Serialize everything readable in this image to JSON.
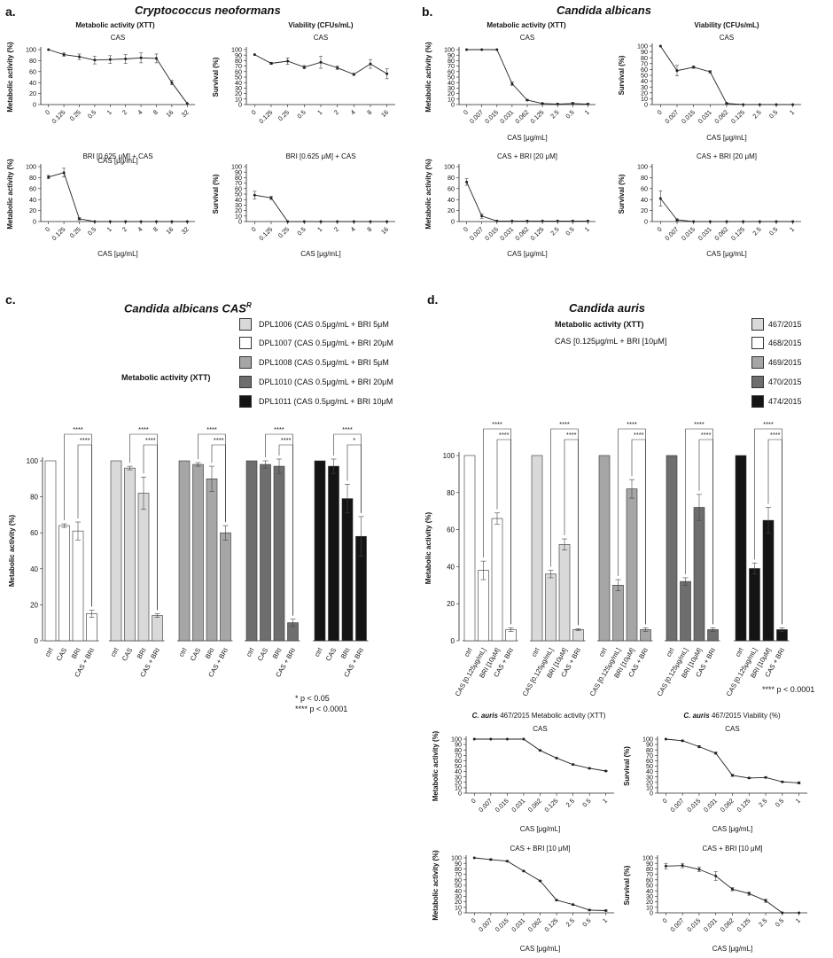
{
  "panels": {
    "a": {
      "letter": "a.",
      "species": "Cryptococcus neoformans"
    },
    "b": {
      "letter": "b.",
      "species": "Candida albicans"
    },
    "c": {
      "letter": "c.",
      "species": "Candida albicans CAS",
      "species_sup": "R",
      "header": "Metabolic activity (XTT)",
      "legend": [
        {
          "label": "DPL1006 (CAS 0.5μg/mL + BRI 5μM",
          "color": "#d9d9d9"
        },
        {
          "label": "DPL1007 (CAS 0.5μg/mL + BRI 20μM",
          "color": "#ffffff"
        },
        {
          "label": "DPL1008 (CAS 0.5μg/mL + BRI 5μM",
          "color": "#a6a6a6"
        },
        {
          "label": "DPL1010 (CAS 0.5μg/mL + BRI 20μM",
          "color": "#6e6e6e"
        },
        {
          "label": "DPL1011 (CAS 0.5μg/mL + BRI 10μM",
          "color": "#141414"
        }
      ],
      "note1": "* p < 0.05",
      "note2": "**** p < 0.0001"
    },
    "d": {
      "letter": "d.",
      "species": "Candida auris",
      "header": "Metabolic activity (XTT)",
      "subheader": "CAS [0.125μg/mL + BRI [10μM]",
      "legend": [
        {
          "label": "467/2015",
          "color": "#d9d9d9"
        },
        {
          "label": "468/2015",
          "color": "#ffffff"
        },
        {
          "label": "469/2015",
          "color": "#a6a6a6"
        },
        {
          "label": "470/2015",
          "color": "#6e6e6e"
        },
        {
          "label": "474/2015",
          "color": "#141414"
        }
      ],
      "note": "**** p < 0.0001"
    }
  },
  "chart_data": [
    {
      "id": "a1",
      "type": "line",
      "heading": "Metabolic activity (XTT)",
      "title": "CAS",
      "xlabel": "CAS [μg/mL]",
      "ylabel": "Metabolic activity (%)",
      "ylim": [
        0,
        100
      ],
      "yticks": [
        0,
        20,
        40,
        60,
        80,
        100
      ],
      "x": [
        "0",
        "0.125",
        "0.25",
        "0.5",
        "1",
        "2",
        "4",
        "8",
        "16",
        "32"
      ],
      "y": [
        100,
        91,
        87,
        81,
        82,
        83,
        85,
        84,
        40,
        2
      ],
      "err": [
        0,
        3,
        5,
        7,
        7,
        8,
        9,
        8,
        4,
        0
      ]
    },
    {
      "id": "a2",
      "type": "line",
      "heading": "Viability (CFUs/mL)",
      "title": "CAS",
      "xlabel": "",
      "ylabel": "Survival (%)",
      "ylim": [
        0,
        100
      ],
      "yticks": [
        0,
        10,
        20,
        30,
        40,
        50,
        60,
        70,
        80,
        90,
        100
      ],
      "x": [
        "0",
        "0.125",
        "0.25",
        "0.5",
        "1",
        "2",
        "4",
        "8",
        "16"
      ],
      "y": [
        91,
        75,
        79,
        68,
        77,
        67,
        55,
        74,
        56
      ],
      "err": [
        0,
        2,
        6,
        3,
        11,
        3,
        2,
        8,
        9
      ]
    },
    {
      "id": "a3",
      "type": "line",
      "heading": "",
      "title": "BRI [0.625 μM] + CAS",
      "xlabel": "CAS [μg/mL]",
      "ylabel": "Metabolic activity (%)",
      "ylim": [
        0,
        100
      ],
      "yticks": [
        0,
        20,
        40,
        60,
        80,
        100
      ],
      "x": [
        "0",
        "0.125",
        "0.25",
        "0.5",
        "1",
        "2",
        "4",
        "8",
        "16",
        "32"
      ],
      "y": [
        81,
        89,
        5,
        0,
        0,
        0,
        0,
        0,
        0,
        0
      ],
      "err": [
        3,
        8,
        2,
        0,
        0,
        0,
        0,
        0,
        0,
        0
      ]
    },
    {
      "id": "a4",
      "type": "line",
      "heading": "",
      "title": "BRI [0.625 μM] + CAS",
      "xlabel": "CAS [μg/mL]",
      "ylabel": "Survival (%)",
      "ylim": [
        0,
        100
      ],
      "yticks": [
        0,
        10,
        20,
        30,
        40,
        50,
        60,
        70,
        80,
        90,
        100
      ],
      "x": [
        "0",
        "0.125",
        "0.25",
        "0.5",
        "1",
        "2",
        "4",
        "8",
        "16"
      ],
      "y": [
        48,
        43,
        0,
        0,
        0,
        0,
        0,
        0,
        0
      ],
      "err": [
        7,
        3,
        0,
        0,
        0,
        0,
        0,
        0,
        0
      ]
    },
    {
      "id": "b1",
      "type": "line",
      "heading": "Metabolic activity (XTT)",
      "title": "CAS",
      "xlabel": "CAS [μg/mL]",
      "ylabel": "Metabolic activity (%)",
      "ylim": [
        0,
        100
      ],
      "yticks": [
        0,
        10,
        20,
        30,
        40,
        50,
        60,
        70,
        80,
        90,
        100
      ],
      "x": [
        "0",
        "0.007",
        "0.015",
        "0.031",
        "0.062",
        "0.125",
        "2.5",
        "0.5",
        "1"
      ],
      "y": [
        100,
        100,
        100,
        38,
        8,
        2,
        1,
        2,
        1
      ],
      "err": [
        0,
        0,
        0,
        3,
        1,
        1,
        1,
        2,
        1
      ]
    },
    {
      "id": "b2",
      "type": "line",
      "heading": "Viability (CFUs/mL)",
      "title": "CAS",
      "xlabel": "CAS [μg/mL]",
      "ylabel": "Survival (%)",
      "ylim": [
        0,
        100
      ],
      "yticks": [
        0,
        10,
        20,
        30,
        40,
        50,
        60,
        70,
        80,
        90,
        100
      ],
      "x": [
        "0",
        "0.007",
        "0.015",
        "0.031",
        "0.062",
        "0.125",
        "2.5",
        "0.5",
        "1"
      ],
      "y": [
        100,
        58,
        64,
        56,
        2,
        0,
        0,
        0,
        0
      ],
      "err": [
        0,
        9,
        2,
        2,
        1,
        0,
        0,
        0,
        0
      ]
    },
    {
      "id": "b3",
      "type": "line",
      "heading": "",
      "title": "CAS + BRI [20 μM]",
      "xlabel": "CAS [μg/mL]",
      "ylabel": "Metabolic activity (%)",
      "ylim": [
        0,
        100
      ],
      "yticks": [
        0,
        20,
        40,
        60,
        80,
        100
      ],
      "x": [
        "0",
        "0.007",
        "0.015",
        "0.031",
        "0.062",
        "0.125",
        "2.5",
        "0.5",
        "1"
      ],
      "y": [
        72,
        10,
        1,
        1,
        1,
        1,
        1,
        1,
        1
      ],
      "err": [
        6,
        4,
        0,
        0,
        0,
        0,
        0,
        0,
        0
      ]
    },
    {
      "id": "b4",
      "type": "line",
      "heading": "",
      "title": "CAS + BRI [20 μM]",
      "xlabel": "CAS [μg/mL]",
      "ylabel": "Survival (%)",
      "ylim": [
        0,
        100
      ],
      "yticks": [
        0,
        20,
        40,
        60,
        80,
        100
      ],
      "x": [
        "0",
        "0.007",
        "0.015",
        "0.031",
        "0.062",
        "0.125",
        "2.5",
        "0.5",
        "1"
      ],
      "y": [
        42,
        3,
        0,
        0,
        0,
        0,
        0,
        0,
        0
      ],
      "err": [
        14,
        2,
        0,
        0,
        0,
        0,
        0,
        0,
        0
      ]
    },
    {
      "id": "c",
      "type": "bar",
      "ylabel": "Metabolic activity (%)",
      "ylim": [
        0,
        100
      ],
      "yticks": [
        0,
        20,
        40,
        60,
        80,
        100
      ],
      "categories": [
        "ctrl",
        "CAS",
        "BRI",
        "CAS + BRI"
      ],
      "groups": [
        {
          "color": "#ffffff",
          "values": [
            100,
            64,
            61,
            15
          ],
          "err": [
            0,
            1,
            5,
            2
          ],
          "sig": [
            "****",
            "****"
          ]
        },
        {
          "color": "#d9d9d9",
          "values": [
            100,
            96,
            82,
            14
          ],
          "err": [
            0,
            1,
            9,
            1
          ],
          "sig": [
            "****",
            "****"
          ]
        },
        {
          "color": "#a6a6a6",
          "values": [
            100,
            98,
            90,
            60
          ],
          "err": [
            0,
            1,
            7,
            4
          ],
          "sig": [
            "****",
            "****"
          ]
        },
        {
          "color": "#6e6e6e",
          "values": [
            100,
            98,
            97,
            10
          ],
          "err": [
            0,
            2,
            4,
            2
          ],
          "sig": [
            "****",
            "****"
          ]
        },
        {
          "color": "#141414",
          "values": [
            100,
            97,
            79,
            58
          ],
          "err": [
            0,
            4,
            8,
            11
          ],
          "sig": [
            "****",
            "*"
          ]
        }
      ]
    },
    {
      "id": "d",
      "type": "bar",
      "ylabel": "Metabolic activity (%)",
      "ylim": [
        0,
        100
      ],
      "yticks": [
        0,
        20,
        40,
        60,
        80,
        100
      ],
      "categories": [
        "ctrl",
        "CAS [0.125μg/mL]",
        "BRI [10μM]",
        "CAS + BRI"
      ],
      "groups": [
        {
          "color": "#ffffff",
          "values": [
            100,
            38,
            66,
            6
          ],
          "err": [
            0,
            5,
            3,
            1
          ],
          "sig": [
            "****",
            "****"
          ]
        },
        {
          "color": "#d9d9d9",
          "values": [
            100,
            36,
            52,
            6
          ],
          "err": [
            0,
            2,
            3,
            0.5
          ],
          "sig": [
            "****",
            "****"
          ]
        },
        {
          "color": "#a6a6a6",
          "values": [
            100,
            30,
            82,
            6
          ],
          "err": [
            0,
            3,
            5,
            1
          ],
          "sig": [
            "****",
            "****"
          ]
        },
        {
          "color": "#6e6e6e",
          "values": [
            100,
            32,
            72,
            6
          ],
          "err": [
            0,
            2,
            7,
            1
          ],
          "sig": [
            "****",
            "****"
          ]
        },
        {
          "color": "#141414",
          "values": [
            100,
            39,
            65,
            6
          ],
          "err": [
            0,
            3,
            7,
            1
          ],
          "sig": [
            "****",
            "****"
          ]
        }
      ]
    },
    {
      "id": "d1",
      "type": "line",
      "heading_italic": "C. auris",
      "heading": "467/2015 Metabolic activity (XTT)",
      "title": "CAS",
      "xlabel": "CAS [μg/mL]",
      "ylabel": "Metabolic activity (%)",
      "ylim": [
        0,
        100
      ],
      "yticks": [
        0,
        10,
        20,
        30,
        40,
        50,
        60,
        70,
        80,
        90,
        100
      ],
      "x": [
        "0",
        "0.007",
        "0.015",
        "0.031",
        "0.062",
        "0.125",
        "2.5",
        "0.5",
        "1"
      ],
      "y": [
        100,
        100,
        100,
        100,
        79,
        65,
        53,
        46,
        41
      ],
      "err": [
        0,
        0,
        0,
        0,
        1,
        1,
        1,
        1,
        1
      ]
    },
    {
      "id": "d2",
      "type": "line",
      "heading_italic": "C. auris",
      "heading": "467/2015 Viability (%)",
      "title": "CAS",
      "xlabel": "CAS [μg/mL]",
      "ylabel": "Survival (%)",
      "ylim": [
        0,
        100
      ],
      "yticks": [
        0,
        10,
        20,
        30,
        40,
        50,
        60,
        70,
        80,
        90,
        100
      ],
      "x": [
        "0",
        "0.007",
        "0.015",
        "0.031",
        "0.062",
        "0.125",
        "2.5",
        "0.5",
        "1"
      ],
      "y": [
        100,
        97,
        86,
        74,
        33,
        28,
        29,
        21,
        19
      ],
      "err": [
        0,
        1,
        2,
        2,
        2,
        1,
        1,
        1,
        2
      ]
    },
    {
      "id": "d3",
      "type": "line",
      "heading": "",
      "title": "CAS + BRI [10 μM]",
      "xlabel": "CAS [μg/mL]",
      "ylabel": "Metabolic activity (%)",
      "ylim": [
        0,
        100
      ],
      "yticks": [
        0,
        10,
        20,
        30,
        40,
        50,
        60,
        70,
        80,
        90,
        100
      ],
      "x": [
        "0",
        "0.007",
        "0.015",
        "0.031",
        "0.062",
        "0.125",
        "2.5",
        "0.5",
        "1"
      ],
      "y": [
        100,
        97,
        94,
        76,
        58,
        23,
        15,
        5,
        4
      ],
      "err": [
        0,
        1,
        1,
        1,
        1,
        1,
        1,
        1,
        1
      ]
    },
    {
      "id": "d4",
      "type": "line",
      "heading": "",
      "title": "CAS + BRI [10 μM]",
      "xlabel": "CAS [μg/mL]",
      "ylabel": "Survival (%)",
      "ylim": [
        0,
        100
      ],
      "yticks": [
        0,
        10,
        20,
        30,
        40,
        50,
        60,
        70,
        80,
        90,
        100
      ],
      "x": [
        "0",
        "0.007",
        "0.015",
        "0.031",
        "0.062",
        "0.125",
        "2.5",
        "0.5",
        "1"
      ],
      "y": [
        85,
        86,
        79,
        67,
        43,
        35,
        22,
        0,
        0
      ],
      "err": [
        5,
        4,
        4,
        8,
        3,
        3,
        3,
        0,
        0
      ]
    }
  ]
}
